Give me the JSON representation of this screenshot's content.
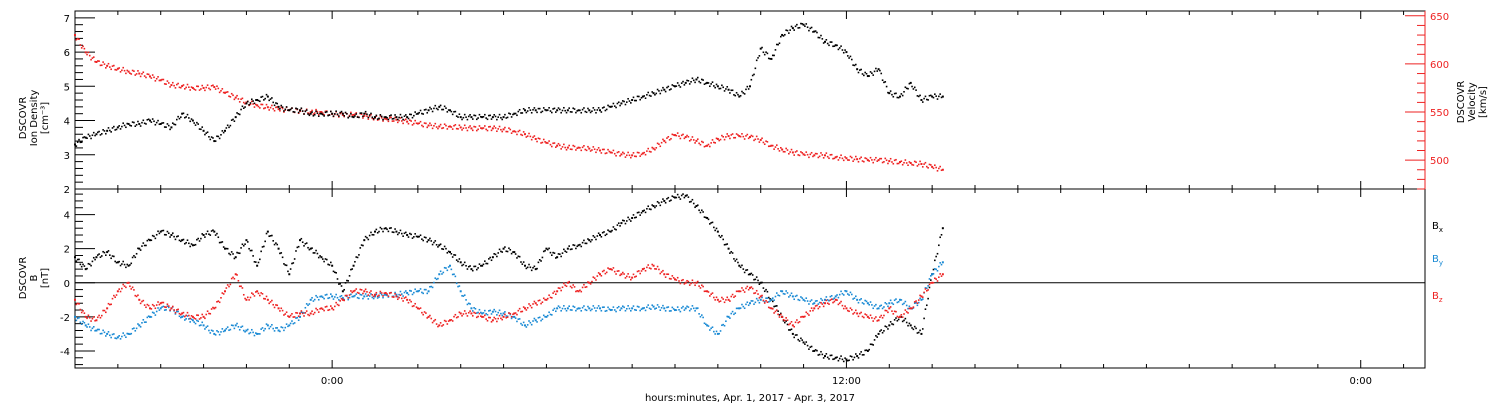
{
  "chart_data": [
    {
      "type": "scatter",
      "panel": "top",
      "ylabel": [
        "DSCOVR",
        "Ion Density",
        "[cm⁻³]"
      ],
      "ylim": [
        2,
        7.2
      ],
      "yticks": [
        2,
        3,
        4,
        5,
        6,
        7
      ],
      "y2label": [
        "DSCOVR",
        "Velocity",
        "[km/s]"
      ],
      "y2lim": [
        470,
        655
      ],
      "y2ticks": [
        500,
        550,
        600,
        650
      ],
      "grid": false,
      "series": [
        {
          "name": "",
          "axis": "left",
          "color": "#000000",
          "x": [
            0,
            0.5,
            1,
            1.5,
            2,
            2.5,
            3,
            3.5,
            4,
            4.5,
            5,
            5.5,
            6,
            6.5,
            7,
            7.5,
            8,
            8.5,
            9,
            9.5,
            10,
            10.5,
            11,
            11.5,
            12,
            12.5,
            13,
            13.5,
            14,
            14.5,
            15,
            15.5,
            16,
            16.5,
            17,
            17.5,
            18,
            18.5,
            19,
            19.5,
            20,
            20.5,
            21,
            21.5,
            22,
            22.5,
            23,
            23.5,
            24,
            24.5,
            25,
            25.5,
            26,
            26.5,
            27,
            27.5,
            28,
            28.5,
            29,
            29.5,
            30,
            30.5,
            31,
            31.5,
            32,
            32.5,
            33,
            33.5,
            34,
            34.5,
            35,
            35.5,
            36,
            36.5,
            37,
            37.5,
            38,
            38.5,
            39,
            39.5,
            40,
            40.5
          ],
          "y": [
            3.3,
            3.5,
            3.6,
            3.7,
            3.8,
            3.9,
            3.9,
            4.0,
            3.9,
            3.8,
            4.2,
            4.0,
            3.7,
            3.4,
            3.7,
            4.1,
            4.5,
            4.6,
            4.7,
            4.4,
            4.3,
            4.3,
            4.2,
            4.2,
            4.2,
            4.2,
            4.1,
            4.2,
            4.1,
            4.1,
            4.1,
            4.1,
            4.2,
            4.3,
            4.4,
            4.3,
            4.1,
            4.1,
            4.1,
            4.1,
            4.1,
            4.2,
            4.3,
            4.3,
            4.3,
            4.3,
            4.3,
            4.3,
            4.3,
            4.3,
            4.4,
            4.5,
            4.6,
            4.7,
            4.8,
            4.9,
            5.0,
            5.1,
            5.2,
            5.1,
            5.0,
            4.9,
            4.7,
            5.0,
            6.1,
            5.8,
            6.5,
            6.7,
            6.8,
            6.6,
            6.3,
            6.2,
            6.0,
            5.5,
            5.3,
            5.5,
            4.8,
            4.7,
            5.1,
            4.6,
            4.7,
            4.7
          ]
        },
        {
          "name": "",
          "axis": "right",
          "color": "#ee2222",
          "x": [
            0,
            0.5,
            1,
            1.5,
            2,
            2.5,
            3,
            3.5,
            4,
            4.5,
            5,
            5.5,
            6,
            6.5,
            7,
            7.5,
            8,
            8.5,
            9,
            9.5,
            10,
            10.5,
            11,
            11.5,
            12,
            12.5,
            13,
            13.5,
            14,
            14.5,
            15,
            15.5,
            16,
            16.5,
            17,
            17.5,
            18,
            18.5,
            19,
            19.5,
            20,
            20.5,
            21,
            21.5,
            22,
            22.5,
            23,
            23.5,
            24,
            24.5,
            25,
            25.5,
            26,
            26.5,
            27,
            27.5,
            28,
            28.5,
            29,
            29.5,
            30,
            30.5,
            31,
            31.5,
            32,
            32.5,
            33,
            33.5,
            34,
            34.5,
            35,
            35.5,
            36,
            36.5,
            37,
            37.5,
            38,
            38.5,
            39,
            39.5,
            40,
            40.5
          ],
          "y": [
            630,
            612,
            602,
            598,
            595,
            592,
            590,
            587,
            583,
            578,
            577,
            575,
            575,
            576,
            570,
            565,
            560,
            557,
            555,
            553,
            552,
            551,
            550,
            550,
            548,
            547,
            547,
            546,
            544,
            543,
            542,
            540,
            538,
            536,
            535,
            535,
            534,
            533,
            533,
            533,
            532,
            530,
            527,
            522,
            518,
            515,
            513,
            513,
            512,
            510,
            508,
            506,
            505,
            507,
            512,
            520,
            526,
            524,
            520,
            515,
            522,
            525,
            525,
            524,
            521,
            515,
            511,
            508,
            506,
            505,
            505,
            503,
            502,
            501,
            500,
            500,
            499,
            498,
            497,
            496,
            493,
            490
          ]
        }
      ]
    },
    {
      "type": "scatter",
      "panel": "bottom",
      "ylabel": [
        "DSCOVR",
        "B",
        "[nT]"
      ],
      "ylim": [
        -5,
        5.5
      ],
      "yticks": [
        -4,
        -2,
        0,
        2,
        4
      ],
      "zero_line": true,
      "grid": false,
      "legend": "right",
      "series": [
        {
          "name": "Bx",
          "label_main": "B",
          "label_sub": "x",
          "color": "#000000",
          "x": [
            0,
            0.5,
            1,
            1.5,
            2,
            2.5,
            3,
            3.5,
            4,
            4.5,
            5,
            5.5,
            6,
            6.5,
            7,
            7.5,
            8,
            8.5,
            9,
            9.5,
            10,
            10.5,
            11,
            11.5,
            12,
            12.5,
            13,
            13.5,
            14,
            14.5,
            15,
            15.5,
            16,
            16.5,
            17,
            17.5,
            18,
            18.5,
            19,
            19.5,
            20,
            20.5,
            21,
            21.5,
            22,
            22.5,
            23,
            23.5,
            24,
            24.5,
            25,
            25.5,
            26,
            26.5,
            27,
            27.5,
            28,
            28.5,
            29,
            29.5,
            30,
            30.5,
            31,
            31.5,
            32,
            32.5,
            33,
            33.5,
            34,
            34.5,
            35,
            35.5,
            36,
            36.5,
            37,
            37.5,
            38,
            38.5,
            39,
            39.5,
            40,
            40.5
          ],
          "y": [
            1.5,
            0.8,
            1.5,
            1.8,
            1.2,
            1.0,
            2.0,
            2.5,
            3.0,
            2.8,
            2.5,
            2.2,
            2.8,
            3.0,
            2.0,
            1.5,
            2.5,
            1.0,
            3.0,
            2.0,
            0.5,
            2.5,
            2.0,
            1.5,
            1.0,
            -0.5,
            1.0,
            2.5,
            3.0,
            3.2,
            3.0,
            2.8,
            2.7,
            2.5,
            2.2,
            1.8,
            1.2,
            0.8,
            1.0,
            1.5,
            2.0,
            1.8,
            1.0,
            0.8,
            2.0,
            1.5,
            2.0,
            2.2,
            2.5,
            2.8,
            3.0,
            3.5,
            3.8,
            4.2,
            4.5,
            4.8,
            5.0,
            5.1,
            4.5,
            3.8,
            3.0,
            2.0,
            1.0,
            0.5,
            0.0,
            -1.0,
            -2.0,
            -3.0,
            -3.5,
            -4.0,
            -4.3,
            -4.4,
            -4.5,
            -4.3,
            -4.0,
            -3.0,
            -2.5,
            -2.0,
            -2.5,
            -3.0,
            0.5,
            3.2
          ]
        },
        {
          "name": "By",
          "label_main": "B",
          "label_sub": "y",
          "color": "#1a8ad4",
          "x": [
            0,
            0.5,
            1,
            1.5,
            2,
            2.5,
            3,
            3.5,
            4,
            4.5,
            5,
            5.5,
            6,
            6.5,
            7,
            7.5,
            8,
            8.5,
            9,
            9.5,
            10,
            10.5,
            11,
            11.5,
            12,
            12.5,
            13,
            13.5,
            14,
            14.5,
            15,
            15.5,
            16,
            16.5,
            17,
            17.5,
            18,
            18.5,
            19,
            19.5,
            20,
            20.5,
            21,
            21.5,
            22,
            22.5,
            23,
            23.5,
            24,
            24.5,
            25,
            25.5,
            26,
            26.5,
            27,
            27.5,
            28,
            28.5,
            29,
            29.5,
            30,
            30.5,
            31,
            31.5,
            32,
            32.5,
            33,
            33.5,
            34,
            34.5,
            35,
            35.5,
            36,
            36.5,
            37,
            37.5,
            38,
            38.5,
            39,
            39.5,
            40,
            40.5
          ],
          "y": [
            -2.0,
            -2.5,
            -2.8,
            -3.0,
            -3.2,
            -3.0,
            -2.5,
            -2.0,
            -1.5,
            -1.5,
            -2.0,
            -2.2,
            -2.5,
            -3.0,
            -2.8,
            -2.5,
            -2.8,
            -3.0,
            -2.5,
            -2.8,
            -2.5,
            -2.0,
            -1.0,
            -0.8,
            -0.8,
            -0.9,
            -0.8,
            -0.8,
            -0.8,
            -0.7,
            -0.7,
            -0.6,
            -0.5,
            -0.5,
            0.5,
            1.0,
            -0.5,
            -1.5,
            -1.8,
            -1.7,
            -1.8,
            -2.0,
            -2.5,
            -2.2,
            -2.0,
            -1.5,
            -1.5,
            -1.5,
            -1.5,
            -1.5,
            -1.6,
            -1.5,
            -1.5,
            -1.5,
            -1.4,
            -1.5,
            -1.6,
            -1.5,
            -1.5,
            -2.5,
            -3.0,
            -2.0,
            -1.5,
            -1.2,
            -1.0,
            -1.0,
            -0.5,
            -0.8,
            -1.0,
            -1.2,
            -1.0,
            -0.8,
            -0.5,
            -1.0,
            -1.2,
            -1.5,
            -1.2,
            -1.0,
            -1.5,
            -1.0,
            0.5,
            1.2
          ]
        },
        {
          "name": "Bz",
          "label_main": "B",
          "label_sub": "z",
          "color": "#ee2222",
          "x": [
            0,
            0.5,
            1,
            1.5,
            2,
            2.5,
            3,
            3.5,
            4,
            4.5,
            5,
            5.5,
            6,
            6.5,
            7,
            7.5,
            8,
            8.5,
            9,
            9.5,
            10,
            10.5,
            11,
            11.5,
            12,
            12.5,
            13,
            13.5,
            14,
            14.5,
            15,
            15.5,
            16,
            16.5,
            17,
            17.5,
            18,
            18.5,
            19,
            19.5,
            20,
            20.5,
            21,
            21.5,
            22,
            22.5,
            23,
            23.5,
            24,
            24.5,
            25,
            25.5,
            26,
            26.5,
            27,
            27.5,
            28,
            28.5,
            29,
            29.5,
            30,
            30.5,
            31,
            31.5,
            32,
            32.5,
            33,
            33.5,
            34,
            34.5,
            35,
            35.5,
            36,
            36.5,
            37,
            37.5,
            38,
            38.5,
            39,
            39.5,
            40,
            40.5
          ],
          "y": [
            -1.0,
            -2.0,
            -2.2,
            -1.5,
            -0.5,
            0.0,
            -1.0,
            -1.5,
            -1.2,
            -1.5,
            -1.8,
            -2.0,
            -2.0,
            -1.5,
            -0.5,
            0.5,
            -1.0,
            -0.5,
            -1.0,
            -1.5,
            -2.0,
            -1.8,
            -1.8,
            -1.5,
            -1.5,
            -1.0,
            -0.5,
            -0.5,
            -0.7,
            -0.6,
            -0.8,
            -1.0,
            -1.5,
            -2.0,
            -2.5,
            -2.2,
            -1.8,
            -1.8,
            -2.0,
            -2.2,
            -2.0,
            -1.8,
            -1.5,
            -1.2,
            -1.0,
            -0.5,
            0.0,
            -0.5,
            0.0,
            0.5,
            0.8,
            0.5,
            0.3,
            0.8,
            1.0,
            0.5,
            0.2,
            0.0,
            0.0,
            -0.5,
            -1.0,
            -1.0,
            -0.5,
            -0.3,
            -0.8,
            -1.5,
            -2.0,
            -2.5,
            -2.0,
            -1.5,
            -1.2,
            -1.0,
            -1.5,
            -1.8,
            -2.0,
            -2.2,
            -1.5,
            -2.0,
            -1.5,
            -0.8,
            0.0,
            0.5
          ]
        }
      ]
    },
    {
      "type": "time-axis",
      "xlabel": "hours:minutes, Apr.  1, 2017 - Apr.  3, 2017",
      "xlim": [
        0,
        63
      ],
      "major_ticks": [
        {
          "x": 12,
          "label": "0:00"
        },
        {
          "x": 36,
          "label": "12:00"
        },
        {
          "x": 60,
          "label": "0:00"
        }
      ],
      "minor_step": 2
    }
  ]
}
